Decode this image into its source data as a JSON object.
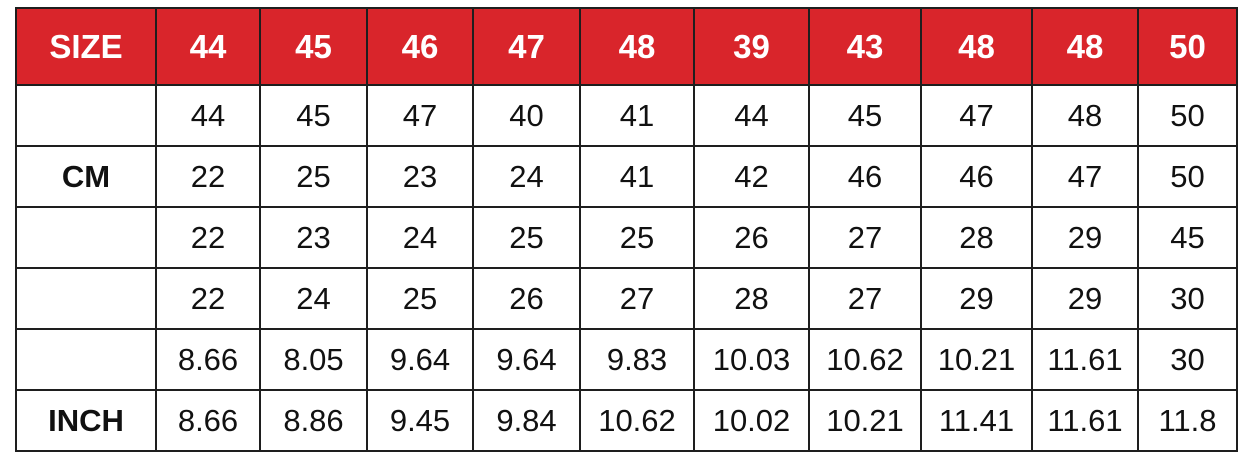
{
  "colors": {
    "header_bg": "#d9252b",
    "header_text": "#ffffff",
    "border": "#1e1e1e"
  },
  "header": [
    "SIZE",
    "44",
    "45",
    "46",
    "47",
    "48",
    "39",
    "43",
    "48",
    "48",
    "50"
  ],
  "rows": [
    {
      "label": "",
      "values": [
        "44",
        "45",
        "47",
        "40",
        "41",
        "44",
        "45",
        "47",
        "48",
        "50"
      ]
    },
    {
      "label": "CM",
      "values": [
        "22",
        "25",
        "23",
        "24",
        "41",
        "42",
        "46",
        "46",
        "47",
        "50"
      ]
    },
    {
      "label": "",
      "values": [
        "22",
        "23",
        "24",
        "25",
        "25",
        "26",
        "27",
        "28",
        "29",
        "45"
      ]
    },
    {
      "label": "",
      "values": [
        "22",
        "24",
        "25",
        "26",
        "27",
        "28",
        "27",
        "29",
        "29",
        "30"
      ]
    },
    {
      "label": "",
      "values": [
        "8.66",
        "8.05",
        "9.64",
        "9.64",
        "9.83",
        "10.03",
        "10.62",
        "10.21",
        "11.61",
        "30"
      ]
    },
    {
      "label": "INCH",
      "values": [
        "8.66",
        "8.86",
        "9.45",
        "9.84",
        "10.62",
        "10.02",
        "10.21",
        "11.41",
        "11.61",
        "11.8"
      ]
    }
  ]
}
